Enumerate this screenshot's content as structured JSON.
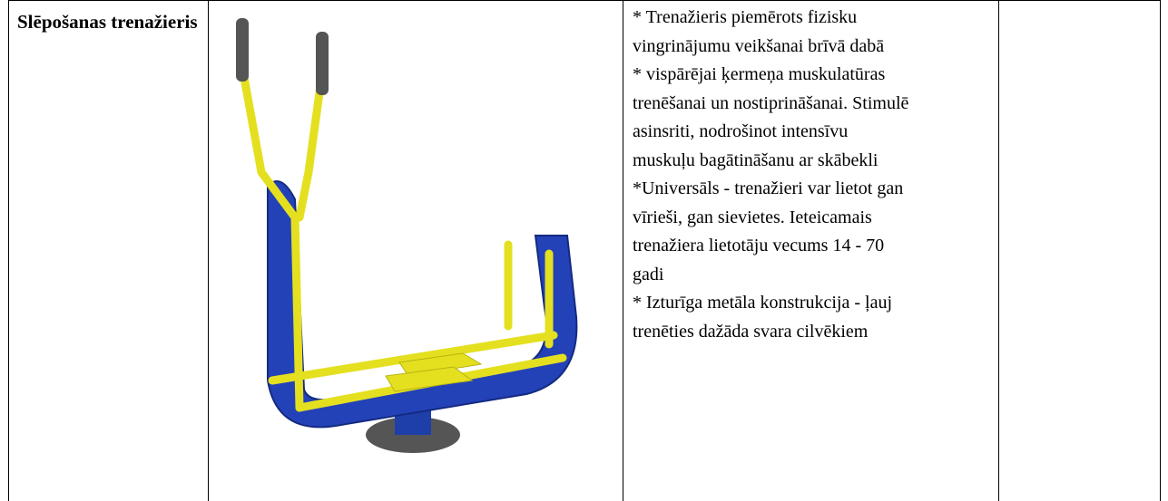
{
  "table": {
    "rows": [
      [
        "Slēpošanas trenažieris",
        [
          "* Trenažieris piemērots fizisku",
          "vingrinājumu veikšanai brīvā dabā",
          "* vispārējai ķermeņa muskulatūras",
          "trenēšanai un nostiprināšanai. Stimulē",
          "asinsriti, nodrošinot intensīvu",
          "muskuļu bagātināšanu ar skābekli",
          "*Universāls - trenažieri var lietot gan",
          "vīrieši, gan sievietes. Ieteicamais",
          "trenažiera lietotāju vecums 14 - 70",
          "gadi",
          "* Izturīga metāla konstrukcija - ļauj",
          "trenēties dažāda svara cilvēkiem"
        ]
      ]
    ]
  }
}
